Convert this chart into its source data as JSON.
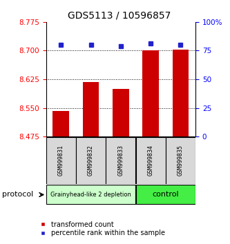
{
  "title": "GDS5113 / 10596857",
  "samples": [
    "GSM999831",
    "GSM999832",
    "GSM999833",
    "GSM999834",
    "GSM999835"
  ],
  "bar_values": [
    8.543,
    8.618,
    8.6,
    8.7,
    8.703
  ],
  "percentile_values": [
    80,
    80,
    79,
    81,
    80
  ],
  "bar_color": "#cc0000",
  "percentile_color": "#2222cc",
  "ylim_left": [
    8.475,
    8.775
  ],
  "yticks_left": [
    8.475,
    8.55,
    8.625,
    8.7,
    8.775
  ],
  "ylim_right": [
    0,
    100
  ],
  "yticks_right": [
    0,
    25,
    50,
    75,
    100
  ],
  "yticklabels_right": [
    "0",
    "25",
    "50",
    "75",
    "100%"
  ],
  "group1_label": "Grainyhead-like 2 depletion",
  "group2_label": "control",
  "group1_color": "#ccffcc",
  "group2_color": "#44ee44",
  "group1_indices": [
    0,
    1,
    2
  ],
  "group2_indices": [
    3,
    4
  ],
  "protocol_label": "protocol",
  "legend_bar_label": "transformed count",
  "legend_pct_label": "percentile rank within the sample",
  "bg_color": "#ffffff",
  "panel_bg": "#d8d8d8"
}
